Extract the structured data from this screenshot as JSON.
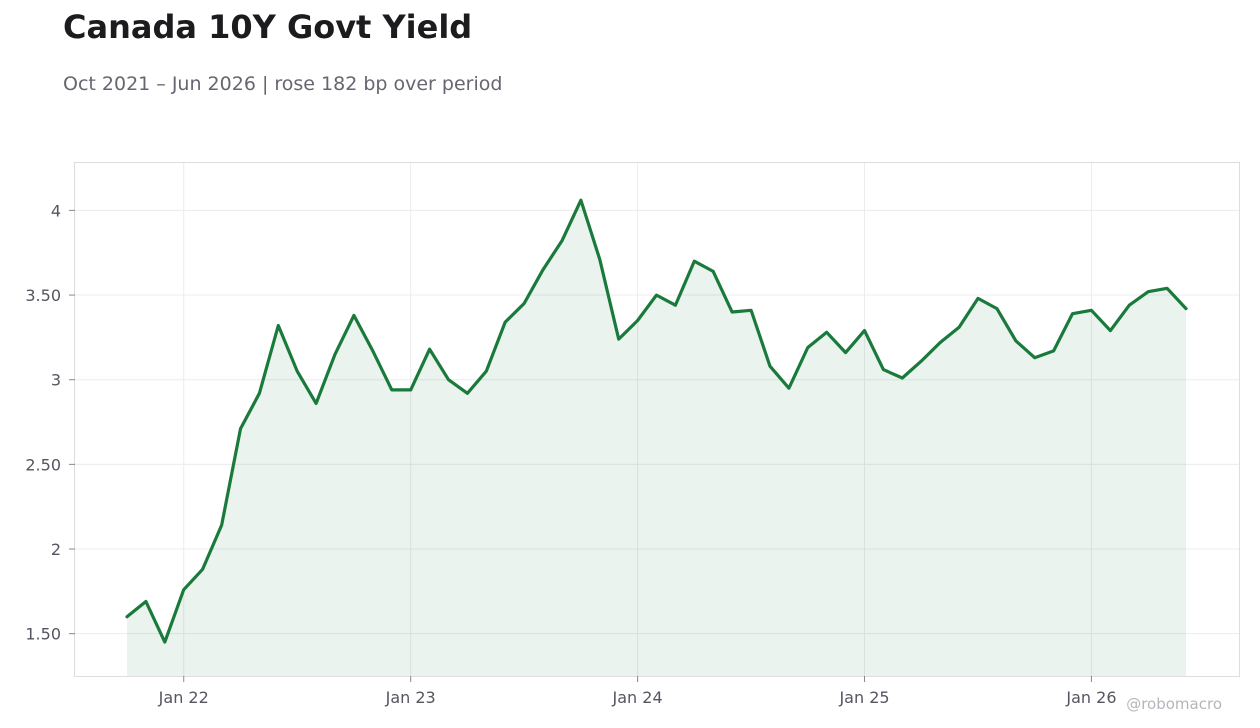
{
  "title": "Canada 10Y Govt Yield",
  "subtitle": "Oct 2021 – Jun 2026 | rose 182 bp over period",
  "watermark": "@robomacro",
  "colors": {
    "line": "#1a7a3c",
    "fill": "#1a7a3c",
    "grid": "#ececec",
    "frame": "#dddddd"
  },
  "chart_data": {
    "type": "area",
    "x_start": "2021-10",
    "x_end": "2026-06",
    "xticks": [
      {
        "date": "2022-01",
        "label": "Jan 22"
      },
      {
        "date": "2023-01",
        "label": "Jan 23"
      },
      {
        "date": "2024-01",
        "label": "Jan 24"
      },
      {
        "date": "2025-01",
        "label": "Jan 25"
      },
      {
        "date": "2026-01",
        "label": "Jan 26"
      }
    ],
    "yticks": [
      {
        "value": 1.5,
        "label": "1.50"
      },
      {
        "value": 2,
        "label": "2"
      },
      {
        "value": 2.5,
        "label": "2.50"
      },
      {
        "value": 3,
        "label": "3"
      },
      {
        "value": 3.5,
        "label": "3.50"
      },
      {
        "value": 4,
        "label": "4"
      }
    ],
    "ylim": [
      1.25,
      4.28
    ],
    "grid": true,
    "series": [
      {
        "x": [
          "2021-10",
          "2021-11",
          "2021-12",
          "2022-01",
          "2022-02",
          "2022-03",
          "2022-04",
          "2022-05",
          "2022-06",
          "2022-07",
          "2022-08",
          "2022-09",
          "2022-10",
          "2022-11",
          "2022-12",
          "2023-01",
          "2023-02",
          "2023-03",
          "2023-04",
          "2023-05",
          "2023-06",
          "2023-07",
          "2023-08",
          "2023-09",
          "2023-10",
          "2023-11",
          "2023-12",
          "2024-01",
          "2024-02",
          "2024-03",
          "2024-04",
          "2024-05",
          "2024-06",
          "2024-07",
          "2024-08",
          "2024-09",
          "2024-10",
          "2024-11",
          "2024-12",
          "2025-01",
          "2025-02",
          "2025-03",
          "2025-04",
          "2025-05",
          "2025-06",
          "2025-07",
          "2025-08",
          "2025-09",
          "2025-10",
          "2025-11",
          "2025-12",
          "2026-01",
          "2026-02",
          "2026-03",
          "2026-04",
          "2026-05",
          "2026-06"
        ],
        "values": [
          1.6,
          1.69,
          1.45,
          1.76,
          1.88,
          2.14,
          2.71,
          2.92,
          3.32,
          3.05,
          2.86,
          3.15,
          3.38,
          3.17,
          2.94,
          2.94,
          3.18,
          3.0,
          2.92,
          3.05,
          3.34,
          3.45,
          3.65,
          3.82,
          4.06,
          3.71,
          3.24,
          3.35,
          3.5,
          3.44,
          3.7,
          3.64,
          3.4,
          3.41,
          3.08,
          2.95,
          3.19,
          3.28,
          3.16,
          3.29,
          3.06,
          3.01,
          3.11,
          3.22,
          3.31,
          3.48,
          3.42,
          3.23,
          3.13,
          3.17,
          3.39,
          3.41,
          3.29,
          3.44,
          3.52,
          3.54,
          3.42
        ]
      }
    ]
  }
}
